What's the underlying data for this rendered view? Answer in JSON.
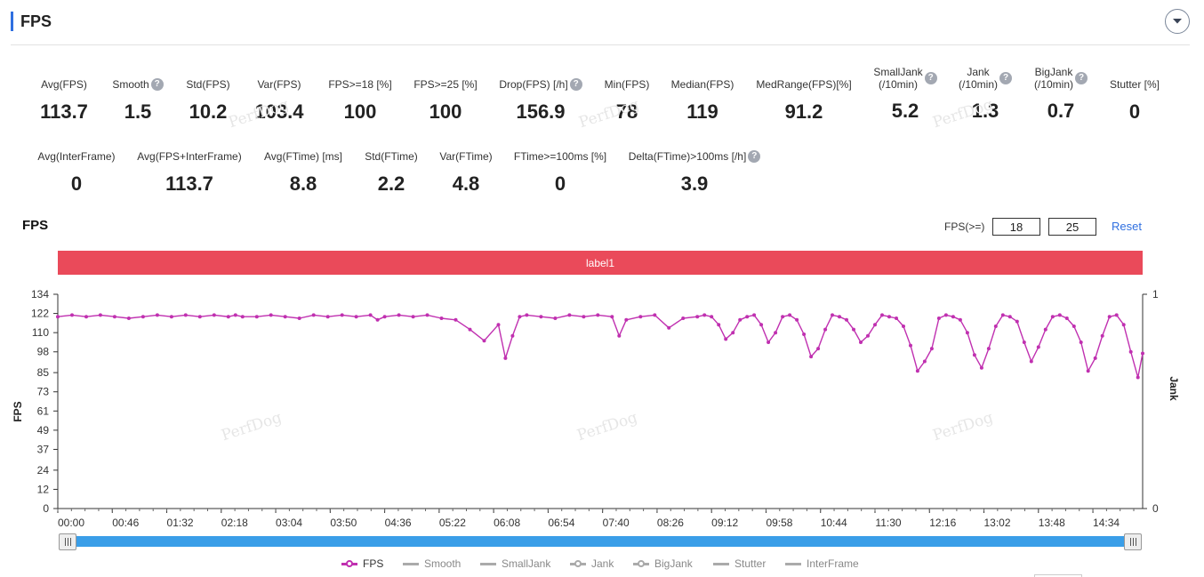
{
  "header": {
    "title": "FPS"
  },
  "metrics_row1": [
    {
      "label": "Avg(FPS)",
      "value": "113.7",
      "help": false
    },
    {
      "label": "Smooth",
      "value": "1.5",
      "help": true
    },
    {
      "label": "Std(FPS)",
      "value": "10.2",
      "help": false
    },
    {
      "label": "Var(FPS)",
      "value": "103.4",
      "help": false
    },
    {
      "label": "FPS>=18 [%]",
      "value": "100",
      "help": false
    },
    {
      "label": "FPS>=25 [%]",
      "value": "100",
      "help": false
    },
    {
      "label": "Drop(FPS) [/h]",
      "value": "156.9",
      "help": true
    },
    {
      "label": "Min(FPS)",
      "value": "78",
      "help": false
    },
    {
      "label": "Median(FPS)",
      "value": "119",
      "help": false
    },
    {
      "label": "MedRange(FPS)[%]",
      "value": "91.2",
      "help": false
    },
    {
      "label": "SmallJank\n(/10min)",
      "value": "5.2",
      "help": true
    },
    {
      "label": "Jank\n(/10min)",
      "value": "1.3",
      "help": true
    },
    {
      "label": "BigJank\n(/10min)",
      "value": "0.7",
      "help": true
    },
    {
      "label": "Stutter [%]",
      "value": "0",
      "help": false
    }
  ],
  "metrics_row2": [
    {
      "label": "Avg(InterFrame)",
      "value": "0",
      "help": false
    },
    {
      "label": "Avg(FPS+InterFrame)",
      "value": "113.7",
      "help": false
    },
    {
      "label": "Avg(FTime) [ms]",
      "value": "8.8",
      "help": false
    },
    {
      "label": "Std(FTime)",
      "value": "2.2",
      "help": false
    },
    {
      "label": "Var(FTime)",
      "value": "4.8",
      "help": false
    },
    {
      "label": "FTime>=100ms [%]",
      "value": "0",
      "help": false
    },
    {
      "label": "Delta(FTime)>100ms [/h]",
      "value": "3.9",
      "help": true
    }
  ],
  "chart_section": {
    "title": "FPS",
    "threshold_label": "FPS(>=)",
    "threshold_1": "18",
    "threshold_2": "25",
    "reset_label": "Reset",
    "band_label": "label1",
    "watermark": "PerfDog"
  },
  "chart_data": {
    "type": "line",
    "ylabel": "FPS",
    "ylabel_right": "Jank",
    "yticks": [
      "0",
      "12",
      "24",
      "37",
      "49",
      "61",
      "73",
      "85",
      "98",
      "110",
      "122",
      "134"
    ],
    "ylim": [
      0,
      134
    ],
    "yticks_right": [
      "0",
      "1"
    ],
    "xticks": [
      "00:00",
      "00:46",
      "01:32",
      "02:18",
      "03:04",
      "03:50",
      "04:36",
      "05:22",
      "06:08",
      "06:54",
      "07:40",
      "08:26",
      "09:12",
      "09:58",
      "10:44",
      "11:30",
      "12:16",
      "13:02",
      "13:48",
      "14:34"
    ],
    "x_unit_seconds_per_tick": 46,
    "duration_seconds": 916,
    "series": [
      {
        "name": "FPS",
        "color": "#c030b0",
        "x": [
          0,
          12,
          24,
          36,
          48,
          60,
          72,
          84,
          96,
          108,
          120,
          132,
          144,
          150,
          156,
          168,
          180,
          192,
          204,
          216,
          228,
          240,
          252,
          264,
          270,
          276,
          288,
          300,
          312,
          324,
          336,
          348,
          360,
          372,
          378,
          384,
          390,
          396,
          408,
          420,
          432,
          444,
          456,
          468,
          474,
          480,
          492,
          504,
          516,
          528,
          540,
          546,
          552,
          558,
          564,
          570,
          576,
          582,
          588,
          594,
          600,
          606,
          612,
          618,
          624,
          630,
          636,
          642,
          648,
          654,
          660,
          666,
          672,
          678,
          684,
          690,
          696,
          702,
          708,
          714,
          720,
          726,
          732,
          738,
          744,
          750,
          756,
          762,
          768,
          774,
          780,
          786,
          792,
          798,
          804,
          810,
          816,
          822,
          828,
          834,
          840,
          846,
          852,
          858,
          864,
          870,
          876,
          882,
          888,
          894,
          900,
          906,
          912,
          916
        ],
        "y": [
          120,
          121,
          120,
          121,
          120,
          119,
          120,
          121,
          120,
          121,
          120,
          121,
          120,
          121,
          120,
          120,
          121,
          120,
          119,
          121,
          120,
          121,
          120,
          121,
          118,
          120,
          121,
          120,
          121,
          119,
          118,
          112,
          105,
          115,
          94,
          108,
          120,
          121,
          120,
          119,
          121,
          120,
          121,
          120,
          108,
          118,
          120,
          121,
          113,
          119,
          120,
          121,
          120,
          115,
          106,
          110,
          118,
          120,
          121,
          115,
          104,
          110,
          120,
          121,
          118,
          109,
          95,
          100,
          112,
          121,
          120,
          118,
          112,
          104,
          108,
          115,
          121,
          120,
          119,
          114,
          102,
          86,
          92,
          100,
          119,
          121,
          120,
          118,
          110,
          96,
          88,
          100,
          114,
          121,
          120,
          117,
          104,
          92,
          101,
          112,
          120,
          121,
          119,
          114,
          104,
          86,
          94,
          108,
          120,
          121,
          115,
          98,
          82,
          97
        ]
      },
      {
        "name": "Smooth",
        "color": "#aaaaaa",
        "x": [],
        "y": []
      },
      {
        "name": "SmallJank",
        "color": "#aaaaaa",
        "x": [],
        "y": []
      },
      {
        "name": "Jank",
        "color": "#aaaaaa",
        "x": [],
        "y": []
      },
      {
        "name": "BigJank",
        "color": "#aaaaaa",
        "x": [],
        "y": []
      },
      {
        "name": "Stutter",
        "color": "#aaaaaa",
        "x": [],
        "y": []
      },
      {
        "name": "InterFrame",
        "color": "#aaaaaa",
        "x": [],
        "y": []
      }
    ],
    "grid": false,
    "legend": "bottom-center"
  },
  "legend_items": [
    {
      "label": "FPS",
      "active": true,
      "dot": true
    },
    {
      "label": "Smooth",
      "active": false,
      "dot": false
    },
    {
      "label": "SmallJank",
      "active": false,
      "dot": false
    },
    {
      "label": "Jank",
      "active": false,
      "dot": true
    },
    {
      "label": "BigJank",
      "active": false,
      "dot": true
    },
    {
      "label": "Stutter",
      "active": false,
      "dot": false
    },
    {
      "label": "InterFrame",
      "active": false,
      "dot": false
    }
  ],
  "colors": {
    "accent": "#2f6fe0",
    "band": "#ea4a5a",
    "series": "#c030b0",
    "slider": "#3a9ee8"
  }
}
